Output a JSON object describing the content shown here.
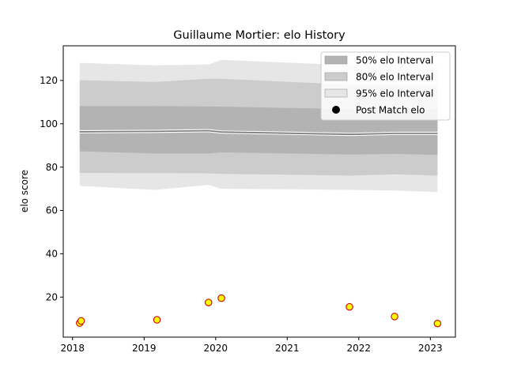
{
  "chart_data": {
    "type": "line",
    "title": "Guillaume Mortier: elo History",
    "xlabel": "",
    "ylabel": "elo score",
    "xlim": [
      2017.87,
      2023.35
    ],
    "ylim": [
      1.5,
      136
    ],
    "x_ticks": [
      2018,
      2019,
      2020,
      2021,
      2022,
      2023
    ],
    "x_tick_labels": [
      "2018",
      "2019",
      "2020",
      "2021",
      "2022",
      "2023"
    ],
    "y_ticks": [
      20,
      40,
      60,
      80,
      100,
      120
    ],
    "y_tick_labels": [
      "20",
      "40",
      "60",
      "80",
      "100",
      "120"
    ],
    "grid": false,
    "legend_position": "top-right",
    "colors": {
      "band_50": "#b3b3b3",
      "band_80": "#cccccc",
      "band_95": "#e6e6e6",
      "mean_line": "#808080",
      "marker_fill": "#ffff00",
      "marker_edge": "#cc0000"
    },
    "legend": [
      {
        "label": "50% elo Interval",
        "kind": "band",
        "color": "#b3b3b3"
      },
      {
        "label": "80% elo Interval",
        "kind": "band",
        "color": "#cccccc"
      },
      {
        "label": "95% elo Interval",
        "kind": "band",
        "color": "#e6e6e6"
      },
      {
        "label": "Post Match elo",
        "kind": "marker",
        "color": "#000000"
      }
    ],
    "bands": {
      "x": [
        2018.1,
        2019.15,
        2019.9,
        2020.08,
        2021.9,
        2022.5,
        2023.1
      ],
      "mean": [
        96.3,
        96.5,
        96.8,
        96.2,
        95.1,
        95.6,
        95.6
      ],
      "p50_low": [
        87.3,
        86.3,
        86.3,
        86.8,
        85.8,
        86.1,
        85.6
      ],
      "p50_high": [
        108.2,
        108.2,
        108.0,
        107.9,
        106.8,
        106.7,
        106.5
      ],
      "p80_low": [
        77.3,
        77.2,
        77.1,
        76.9,
        76.1,
        76.7,
        76.1
      ],
      "p80_high": [
        120.1,
        119.3,
        120.8,
        120.8,
        118.0,
        117.5,
        117.5
      ],
      "p95_low": [
        71.3,
        69.5,
        71.8,
        70.0,
        69.5,
        69.2,
        68.5
      ],
      "p95_high": [
        128.1,
        127.0,
        127.4,
        129.5,
        127.0,
        127.0,
        127.0
      ]
    },
    "points": {
      "x": [
        2018.1,
        2018.12,
        2019.18,
        2019.9,
        2020.08,
        2021.87,
        2022.5,
        2023.1
      ],
      "y": [
        8.0,
        9.0,
        9.5,
        17.5,
        19.5,
        15.5,
        11.0,
        7.8
      ]
    }
  }
}
